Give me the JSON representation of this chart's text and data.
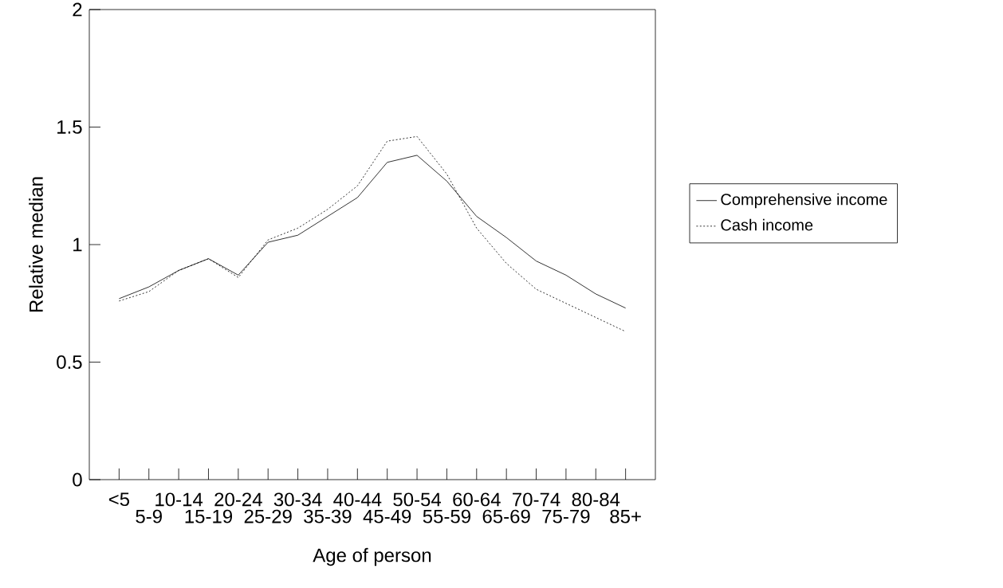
{
  "chart_data": {
    "type": "line",
    "xlabel": "Age of person",
    "ylabel": "Relative median",
    "categories": [
      "<5",
      "5-9",
      "10-14",
      "15-19",
      "20-24",
      "25-29",
      "30-34",
      "35-39",
      "40-44",
      "45-49",
      "50-54",
      "55-59",
      "60-64",
      "65-69",
      "70-74",
      "75-79",
      "80-84",
      "85+"
    ],
    "series": [
      {
        "name": "Comprehensive income",
        "color": "#000000",
        "line_style": "solid",
        "values": [
          0.77,
          0.82,
          0.89,
          0.94,
          0.87,
          1.01,
          1.04,
          1.12,
          1.2,
          1.35,
          1.38,
          1.27,
          1.12,
          1.03,
          0.93,
          0.87,
          0.79,
          0.73
        ]
      },
      {
        "name": "Cash income",
        "color": "#000000",
        "line_style": "dotted",
        "values": [
          0.76,
          0.8,
          0.89,
          0.94,
          0.86,
          1.02,
          1.07,
          1.15,
          1.25,
          1.44,
          1.46,
          1.3,
          1.07,
          0.92,
          0.81,
          0.75,
          0.69,
          0.63
        ]
      }
    ],
    "ylim": [
      0,
      2
    ],
    "yticks": [
      0,
      0.5,
      1,
      1.5,
      2
    ],
    "grid": false,
    "legend": "right",
    "marker": "none"
  }
}
